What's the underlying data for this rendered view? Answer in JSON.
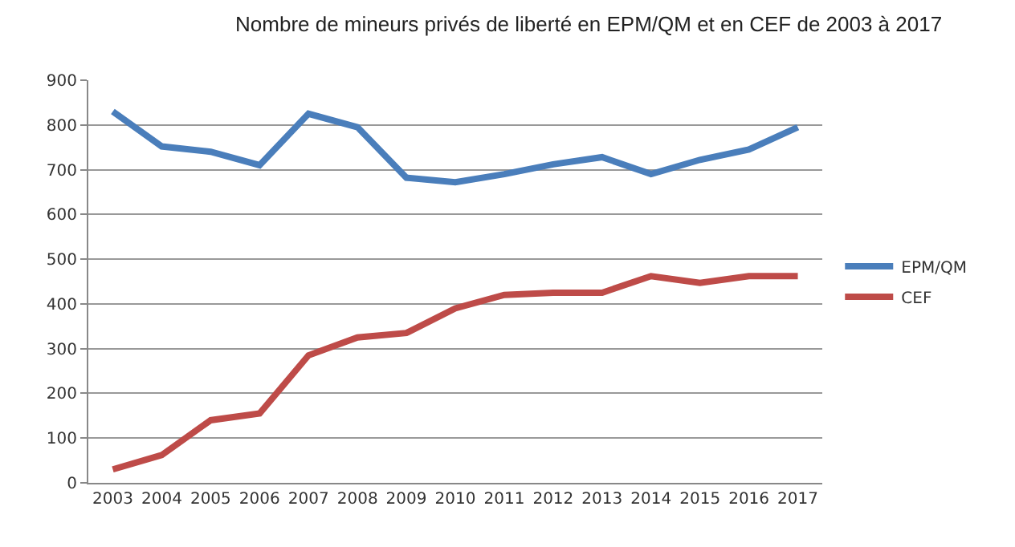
{
  "chart_data": {
    "type": "line",
    "title": "Nombre de mineurs privés de liberté en EPM/QM et en CEF de 2003 à 2017",
    "categories": [
      "2003",
      "2004",
      "2005",
      "2006",
      "2007",
      "2008",
      "2009",
      "2010",
      "2011",
      "2012",
      "2013",
      "2014",
      "2015",
      "2016",
      "2017"
    ],
    "series": [
      {
        "name": "EPM/QM",
        "color": "#4a7ebb",
        "values": [
          830,
          752,
          740,
          710,
          825,
          795,
          682,
          672,
          690,
          712,
          728,
          690,
          722,
          745,
          795
        ]
      },
      {
        "name": "CEF",
        "color": "#be4b48",
        "values": [
          30,
          62,
          140,
          155,
          285,
          325,
          335,
          390,
          420,
          425,
          425,
          462,
          447,
          462,
          462
        ]
      }
    ],
    "ylim": [
      0,
      900
    ],
    "yticks": [
      0,
      100,
      200,
      300,
      400,
      500,
      600,
      700,
      800,
      900
    ],
    "grid": "y",
    "legend": "right",
    "marker": "none",
    "line_style": "solid"
  }
}
